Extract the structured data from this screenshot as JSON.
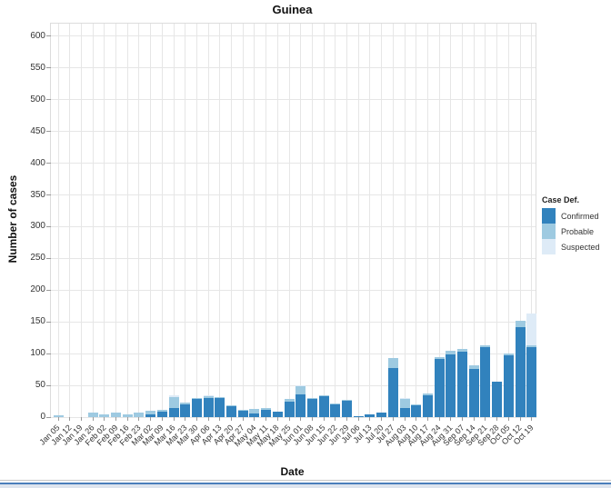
{
  "chart_data": {
    "type": "bar",
    "stacked": true,
    "title": "Guinea",
    "xlabel": "Date",
    "ylabel": "Number of cases",
    "ylim": [
      0,
      620
    ],
    "yticks": [
      0,
      50,
      100,
      150,
      200,
      250,
      300,
      350,
      400,
      450,
      500,
      550,
      600
    ],
    "grid": true,
    "legend": {
      "title": "Case Def.",
      "position": "right",
      "entries": [
        {
          "label": "Confirmed",
          "color": "#3182bd"
        },
        {
          "label": "Probable",
          "color": "#9ecae1"
        },
        {
          "label": "Suspected",
          "color": "#deebf7"
        }
      ]
    },
    "categories": [
      "Jan 05",
      "Jan 12",
      "Jan 19",
      "Jan 26",
      "Feb 02",
      "Feb 09",
      "Feb 16",
      "Feb 23",
      "Mar 02",
      "Mar 09",
      "Mar 16",
      "Mar 23",
      "Mar 30",
      "Apr 06",
      "Apr 13",
      "Apr 20",
      "Apr 27",
      "May 04",
      "May 11",
      "May 18",
      "May 25",
      "Jun 01",
      "Jun 08",
      "Jun 15",
      "Jun 22",
      "Jun 29",
      "Jul 06",
      "Jul 13",
      "Jul 20",
      "Jul 27",
      "Aug 03",
      "Aug 10",
      "Aug 17",
      "Aug 24",
      "Aug 31",
      "Sep 07",
      "Sep 14",
      "Sep 21",
      "Sep 28",
      "Oct 05",
      "Oct 12",
      "Oct 19"
    ],
    "series": [
      {
        "name": "Confirmed",
        "color": "#3182bd",
        "values": [
          0,
          0,
          0,
          0,
          0,
          0,
          0,
          0,
          5,
          8,
          14,
          20,
          28,
          30,
          30,
          17,
          11,
          6,
          12,
          9,
          25,
          36,
          29,
          33,
          20,
          26,
          2,
          5,
          7,
          78,
          14,
          19,
          34,
          92,
          99,
          103,
          76,
          110,
          56,
          98,
          142,
          110
        ]
      },
      {
        "name": "Probable",
        "color": "#9ecae1",
        "values": [
          3,
          0,
          0,
          7,
          5,
          7,
          5,
          7,
          5,
          3,
          17,
          3,
          2,
          3,
          2,
          2,
          1,
          7,
          2,
          0,
          3,
          12,
          1,
          2,
          1,
          1,
          0,
          0,
          0,
          15,
          14,
          1,
          3,
          3,
          5,
          4,
          6,
          3,
          0,
          2,
          10,
          3
        ]
      },
      {
        "name": "Suspected",
        "color": "#deebf7",
        "values": [
          0,
          0,
          0,
          0,
          0,
          0,
          0,
          0,
          0,
          0,
          3,
          0,
          0,
          1,
          0,
          0,
          0,
          0,
          0,
          0,
          0,
          2,
          0,
          0,
          0,
          0,
          0,
          0,
          0,
          0,
          2,
          0,
          0,
          0,
          0,
          0,
          0,
          0,
          0,
          0,
          0,
          50
        ]
      }
    ]
  }
}
